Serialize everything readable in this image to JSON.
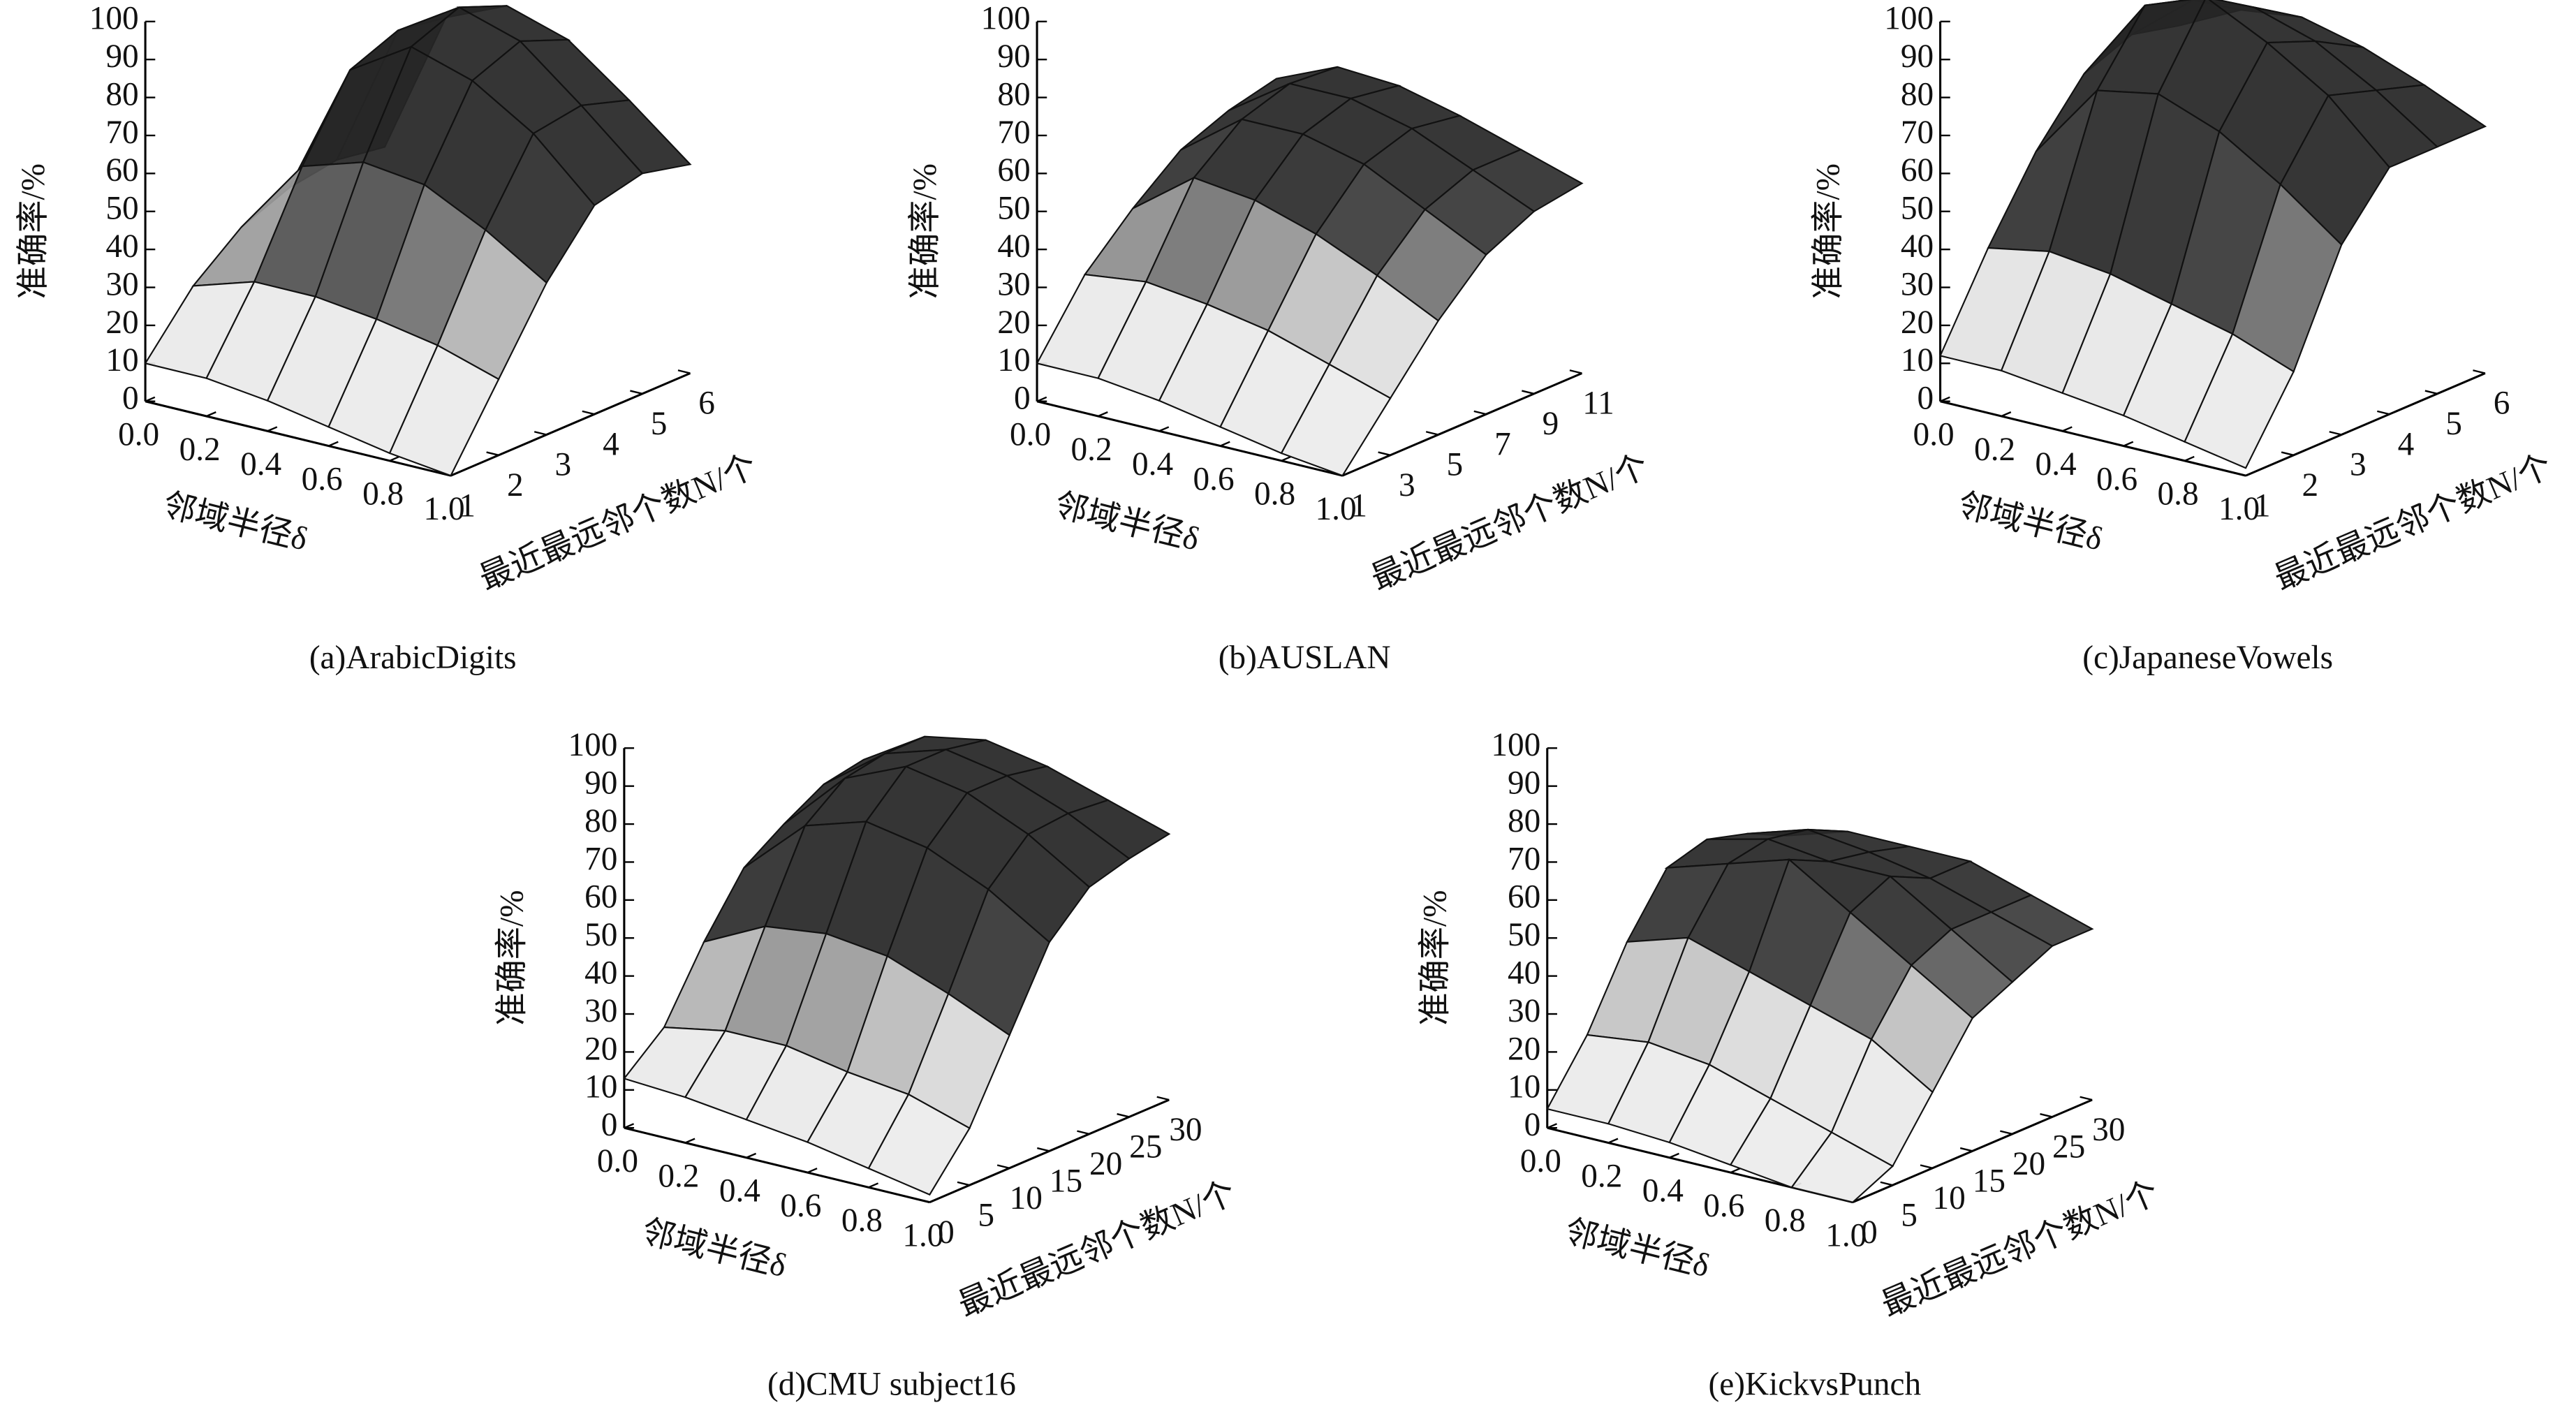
{
  "chart_data": [
    {
      "type": "surface3d",
      "caption": "(a)ArabicDigits",
      "xlabel": "邻域半径δ",
      "ylabel": "最近最远邻个数N/个",
      "zlabel": "准确率/%",
      "x": [
        0,
        0.2,
        0.4,
        0.6,
        0.8,
        1.0
      ],
      "y": [
        1,
        2,
        3,
        4,
        5,
        6
      ],
      "values": [
        [
          10,
          25,
          35,
          40,
          42,
          40
        ],
        [
          10,
          30,
          55,
          75,
          80,
          78
        ],
        [
          8,
          30,
          60,
          85,
          90,
          85
        ],
        [
          5,
          28,
          58,
          80,
          85,
          80
        ],
        [
          2,
          25,
          50,
          70,
          72,
          68
        ],
        [
          0,
          20,
          40,
          55,
          58,
          55
        ]
      ],
      "xlim": [
        0,
        1.0
      ],
      "ylim": [
        1,
        6
      ],
      "zlim": [
        0,
        100
      ],
      "xticks": [
        {
          "value": 0,
          "label": "0.0"
        },
        0.2,
        0.4,
        0.6,
        0.8,
        {
          "value": 1,
          "label": "1.0"
        }
      ],
      "yticks": [
        1,
        2,
        3,
        4,
        5,
        6
      ],
      "zticks": [
        0,
        10,
        20,
        30,
        40,
        50,
        60,
        70,
        80,
        90,
        100
      ],
      "colors": {
        "low": "#ececec",
        "high": "#262626"
      }
    },
    {
      "type": "surface3d",
      "caption": "(b)AUSLAN",
      "xlabel": "邻域半径δ",
      "ylabel": "最近最远邻个数N/个",
      "zlabel": "准确率/%",
      "x": [
        0,
        0.2,
        0.4,
        0.6,
        0.8,
        1.0
      ],
      "y": [
        1,
        3,
        5,
        7,
        9,
        11
      ],
      "values": [
        [
          10,
          28,
          40,
          50,
          55,
          58
        ],
        [
          10,
          30,
          52,
          62,
          66,
          65
        ],
        [
          8,
          28,
          50,
          62,
          66,
          64
        ],
        [
          5,
          25,
          45,
          58,
          62,
          60
        ],
        [
          2,
          20,
          38,
          50,
          55,
          55
        ],
        [
          0,
          15,
          30,
          42,
          48,
          50
        ]
      ],
      "xlim": [
        0,
        1.0
      ],
      "ylim": [
        1,
        11
      ],
      "zlim": [
        0,
        100
      ],
      "xticks": [
        {
          "value": 0,
          "label": "0.0"
        },
        0.2,
        0.4,
        0.6,
        0.8,
        {
          "value": 1,
          "label": "1.0"
        }
      ],
      "yticks": [
        1,
        3,
        5,
        7,
        9,
        11
      ],
      "zticks": [
        0,
        10,
        20,
        30,
        40,
        50,
        60,
        70,
        80,
        90,
        100
      ],
      "colors": {
        "low": "#ececec",
        "high": "#262626"
      }
    },
    {
      "type": "surface3d",
      "caption": "(c)JapaneseVowels",
      "xlabel": "邻域半径δ",
      "ylabel": "最近最远邻个数N/个",
      "zlabel": "准确率/%",
      "x": [
        0,
        0.2,
        0.4,
        0.6,
        0.8,
        1.0
      ],
      "y": [
        1,
        2,
        3,
        4,
        5,
        6
      ],
      "values": [
        [
          12,
          35,
          55,
          70,
          75,
          72
        ],
        [
          12,
          38,
          75,
          92,
          88,
          80
        ],
        [
          10,
          36,
          78,
          98,
          90,
          82
        ],
        [
          8,
          32,
          72,
          90,
          85,
          78
        ],
        [
          5,
          28,
          62,
          80,
          76,
          72
        ],
        [
          2,
          22,
          50,
          65,
          65,
          65
        ]
      ],
      "xlim": [
        0,
        1.0
      ],
      "ylim": [
        1,
        6
      ],
      "zlim": [
        0,
        100
      ],
      "xticks": [
        {
          "value": 0,
          "label": "0.0"
        },
        0.2,
        0.4,
        0.6,
        0.8,
        {
          "value": 1,
          "label": "1.0"
        }
      ],
      "yticks": [
        1,
        2,
        3,
        4,
        5,
        6
      ],
      "zticks": [
        0,
        10,
        20,
        30,
        40,
        50,
        60,
        70,
        80,
        90,
        100
      ],
      "colors": {
        "low": "#ececec",
        "high": "#262626"
      }
    },
    {
      "type": "surface3d",
      "caption": "(d)CMU subject16",
      "xlabel": "邻域半径δ",
      "ylabel": "最近最远邻个数N/个",
      "zlabel": "准确率/%",
      "x": [
        0,
        0.2,
        0.4,
        0.6,
        0.8,
        1.0
      ],
      "y": [
        0,
        5,
        10,
        15,
        20,
        25,
        30
      ],
      "values": [
        [
          13,
          22,
          40,
          55,
          62,
          68,
          70
        ],
        [
          12,
          25,
          48,
          70,
          78,
          80,
          80
        ],
        [
          10,
          25,
          50,
          75,
          85,
          85,
          83
        ],
        [
          8,
          22,
          48,
          72,
          82,
          82,
          80
        ],
        [
          5,
          20,
          42,
          65,
          75,
          76,
          75
        ],
        [
          2,
          15,
          35,
          55,
          65,
          68,
          70
        ]
      ],
      "xlim": [
        0,
        1.0
      ],
      "ylim": [
        0,
        30
      ],
      "zlim": [
        0,
        100
      ],
      "xticks": [
        {
          "value": 0,
          "label": "0.0"
        },
        0.2,
        0.4,
        0.6,
        0.8,
        {
          "value": 1,
          "label": "1.0"
        }
      ],
      "yticks": [
        0,
        5,
        10,
        15,
        20,
        25,
        30
      ],
      "zticks": [
        0,
        10,
        20,
        30,
        40,
        50,
        60,
        70,
        80,
        90,
        100
      ],
      "colors": {
        "low": "#ececec",
        "high": "#262626"
      }
    },
    {
      "type": "surface3d",
      "caption": "(e)KickvsPunch",
      "xlabel": "邻域半径δ",
      "ylabel": "最近最远邻个数N/个",
      "zlabel": "准确率/%",
      "x": [
        0,
        0.2,
        0.4,
        0.6,
        0.8,
        1.0
      ],
      "y": [
        0,
        5,
        10,
        15,
        20,
        25,
        30
      ],
      "values": [
        [
          5,
          20,
          40,
          55,
          58,
          55,
          50
        ],
        [
          5,
          22,
          45,
          60,
          62,
          60,
          55
        ],
        [
          4,
          20,
          40,
          65,
          60,
          58,
          55
        ],
        [
          2,
          15,
          35,
          55,
          60,
          55,
          55
        ],
        [
          0,
          10,
          30,
          45,
          50,
          50,
          50
        ],
        [
          0,
          5,
          20,
          35,
          40,
          45,
          45
        ]
      ],
      "xlim": [
        0,
        1.0
      ],
      "ylim": [
        0,
        30
      ],
      "zlim": [
        0,
        100
      ],
      "xticks": [
        {
          "value": 0,
          "label": "0.0"
        },
        0.2,
        0.4,
        0.6,
        0.8,
        {
          "value": 1,
          "label": "1.0"
        }
      ],
      "yticks": [
        0,
        5,
        10,
        15,
        20,
        25,
        30
      ],
      "zticks": [
        0,
        10,
        20,
        30,
        40,
        50,
        60,
        70,
        80,
        90,
        100
      ],
      "colors": {
        "low": "#ececec",
        "high": "#262626"
      }
    }
  ]
}
